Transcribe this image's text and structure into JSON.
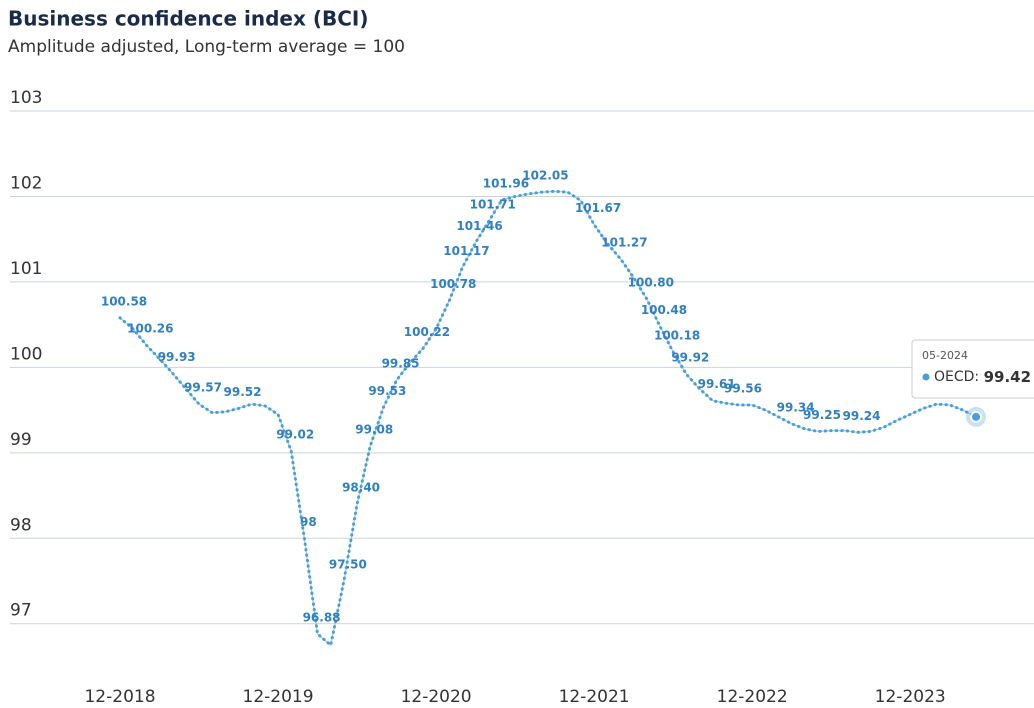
{
  "chart_data": {
    "type": "line",
    "title": "Business confidence index (BCI)",
    "subtitle": "Amplitude adjusted, Long-term average = 100",
    "categories": [
      "12-2018",
      "01-2019",
      "02-2019",
      "03-2019",
      "04-2019",
      "05-2019",
      "06-2019",
      "07-2019",
      "08-2019",
      "09-2019",
      "10-2019",
      "11-2019",
      "12-2019",
      "01-2020",
      "02-2020",
      "03-2020",
      "04-2020",
      "05-2020",
      "06-2020",
      "07-2020",
      "08-2020",
      "09-2020",
      "10-2020",
      "11-2020",
      "12-2020",
      "01-2021",
      "02-2021",
      "03-2021",
      "04-2021",
      "05-2021",
      "06-2021",
      "07-2021",
      "08-2021",
      "09-2021",
      "10-2021",
      "11-2021",
      "12-2021",
      "01-2022",
      "02-2022",
      "03-2022",
      "04-2022",
      "05-2022",
      "06-2022",
      "07-2022",
      "08-2022",
      "09-2022",
      "10-2022",
      "11-2022",
      "12-2022",
      "01-2023",
      "02-2023",
      "03-2023",
      "04-2023",
      "05-2023",
      "06-2023",
      "07-2023",
      "08-2023",
      "09-2023",
      "10-2023",
      "11-2023",
      "12-2023",
      "01-2024",
      "02-2024",
      "03-2024",
      "04-2024",
      "05-2024"
    ],
    "series": [
      {
        "name": "OECD",
        "color": "#4a9fd8",
        "values": [
          100.58,
          100.45,
          100.26,
          100.1,
          99.93,
          99.75,
          99.57,
          99.47,
          99.48,
          99.52,
          99.57,
          99.55,
          99.45,
          99.02,
          98,
          96.88,
          96.75,
          97.5,
          98.4,
          99.08,
          99.53,
          99.85,
          100.05,
          100.22,
          100.45,
          100.78,
          101.17,
          101.46,
          101.71,
          101.96,
          102.0,
          102.03,
          102.05,
          102.06,
          102.05,
          101.95,
          101.67,
          101.45,
          101.27,
          101.05,
          100.8,
          100.48,
          100.18,
          99.92,
          99.75,
          99.61,
          99.58,
          99.56,
          99.56,
          99.5,
          99.42,
          99.34,
          99.28,
          99.25,
          99.26,
          99.26,
          99.24,
          99.25,
          99.3,
          99.38,
          99.45,
          99.52,
          99.57,
          99.56,
          99.5,
          99.42
        ],
        "value_labels": [
          "100.58",
          null,
          "100.26",
          null,
          "99.93",
          null,
          "99.57",
          null,
          null,
          "99.52",
          null,
          null,
          null,
          "99.02",
          "98",
          "96.88",
          null,
          "97.50",
          "98.40",
          "99.08",
          "99.53",
          "99.85",
          null,
          "100.22",
          null,
          "100.78",
          "101.17",
          "101.46",
          "101.71",
          "101.96",
          null,
          null,
          "102.05",
          null,
          null,
          null,
          "101.67",
          null,
          "101.27",
          null,
          "100.80",
          "100.48",
          "100.18",
          "99.92",
          null,
          "99.61",
          null,
          "99.56",
          null,
          null,
          null,
          "99.34",
          null,
          "99.25",
          null,
          null,
          "99.24",
          null,
          null,
          null,
          null,
          null,
          null,
          null,
          null,
          null
        ]
      }
    ],
    "xticks": [
      "12-2018",
      "12-2019",
      "12-2020",
      "12-2021",
      "12-2022",
      "12-2023"
    ],
    "ylim": [
      96.4,
      103
    ],
    "yticks": [
      97,
      98,
      99,
      100,
      101,
      102,
      103
    ],
    "grid": true
  }
}
